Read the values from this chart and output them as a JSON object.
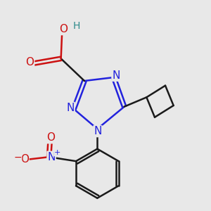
{
  "bg_color": "#e8e8e8",
  "bond_color": "#1a1a1a",
  "nitrogen_color": "#2222dd",
  "oxygen_color": "#cc1111",
  "teal_color": "#2e8b8b",
  "lw": 1.8,
  "sep": 0.008,
  "xlim": [
    0.05,
    0.95
  ],
  "ylim": [
    0.05,
    0.95
  ]
}
